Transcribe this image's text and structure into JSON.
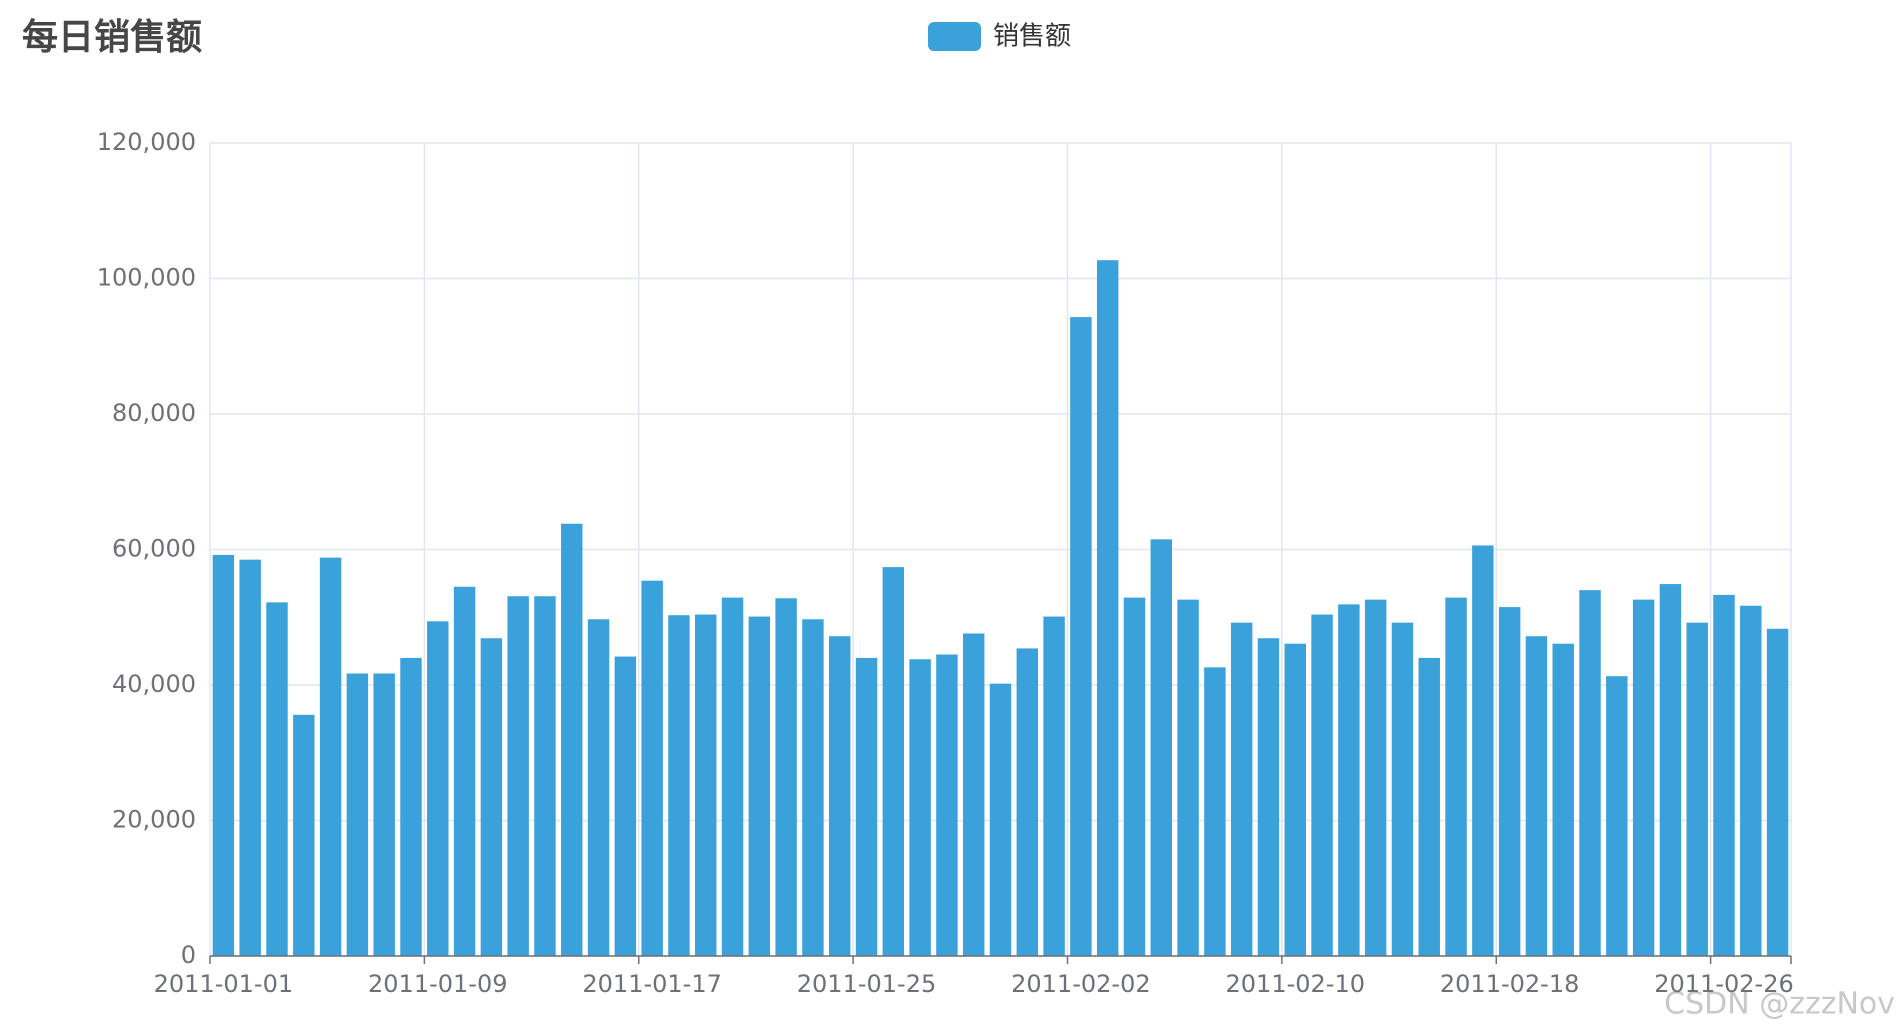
{
  "chart_data": {
    "type": "bar",
    "title": "每日销售额",
    "legend": "销售额",
    "color": "#3aa1da",
    "categories": [
      "2011-01-01",
      null,
      null,
      null,
      null,
      null,
      null,
      null,
      "2011-01-09",
      null,
      null,
      null,
      null,
      null,
      null,
      null,
      "2011-01-17",
      null,
      null,
      null,
      null,
      null,
      null,
      null,
      "2011-01-25",
      null,
      null,
      null,
      null,
      null,
      null,
      null,
      "2011-02-02",
      null,
      null,
      null,
      null,
      null,
      null,
      null,
      "2011-02-10",
      null,
      null,
      null,
      null,
      null,
      null,
      null,
      "2011-02-18",
      null,
      null,
      null,
      null,
      null,
      null,
      null,
      "2011-02-26",
      null,
      null
    ],
    "series": [
      {
        "name": "销售额",
        "color": "#3aa1da",
        "values": [
          59200,
          58500,
          52200,
          35600,
          58800,
          41700,
          41700,
          44000,
          49400,
          54500,
          46900,
          53100,
          53100,
          63800,
          49700,
          44200,
          55400,
          50300,
          50400,
          52900,
          50100,
          52800,
          49700,
          47200,
          44000,
          57400,
          43800,
          44500,
          47600,
          40200,
          45400,
          50100,
          94300,
          102700,
          52900,
          61500,
          52600,
          42600,
          49200,
          46900,
          46100,
          50400,
          51900,
          52600,
          49200,
          44000,
          52900,
          60600,
          51500,
          47200,
          46100,
          54000,
          41300,
          52600,
          54900,
          49200,
          53300,
          51700,
          48300
        ]
      }
    ],
    "ylim": [
      0,
      120000
    ],
    "yticks": [
      0,
      {
        "value": 20000,
        "label": "20,000"
      },
      {
        "value": 40000,
        "label": "40,000"
      },
      {
        "value": 60000,
        "label": "60,000"
      },
      {
        "value": 80000,
        "label": "80,000"
      },
      {
        "value": 100000,
        "label": "100,000"
      },
      {
        "value": 120000,
        "label": "120,000"
      }
    ],
    "grid": true,
    "watermark": "CSDN @zzzNov"
  }
}
